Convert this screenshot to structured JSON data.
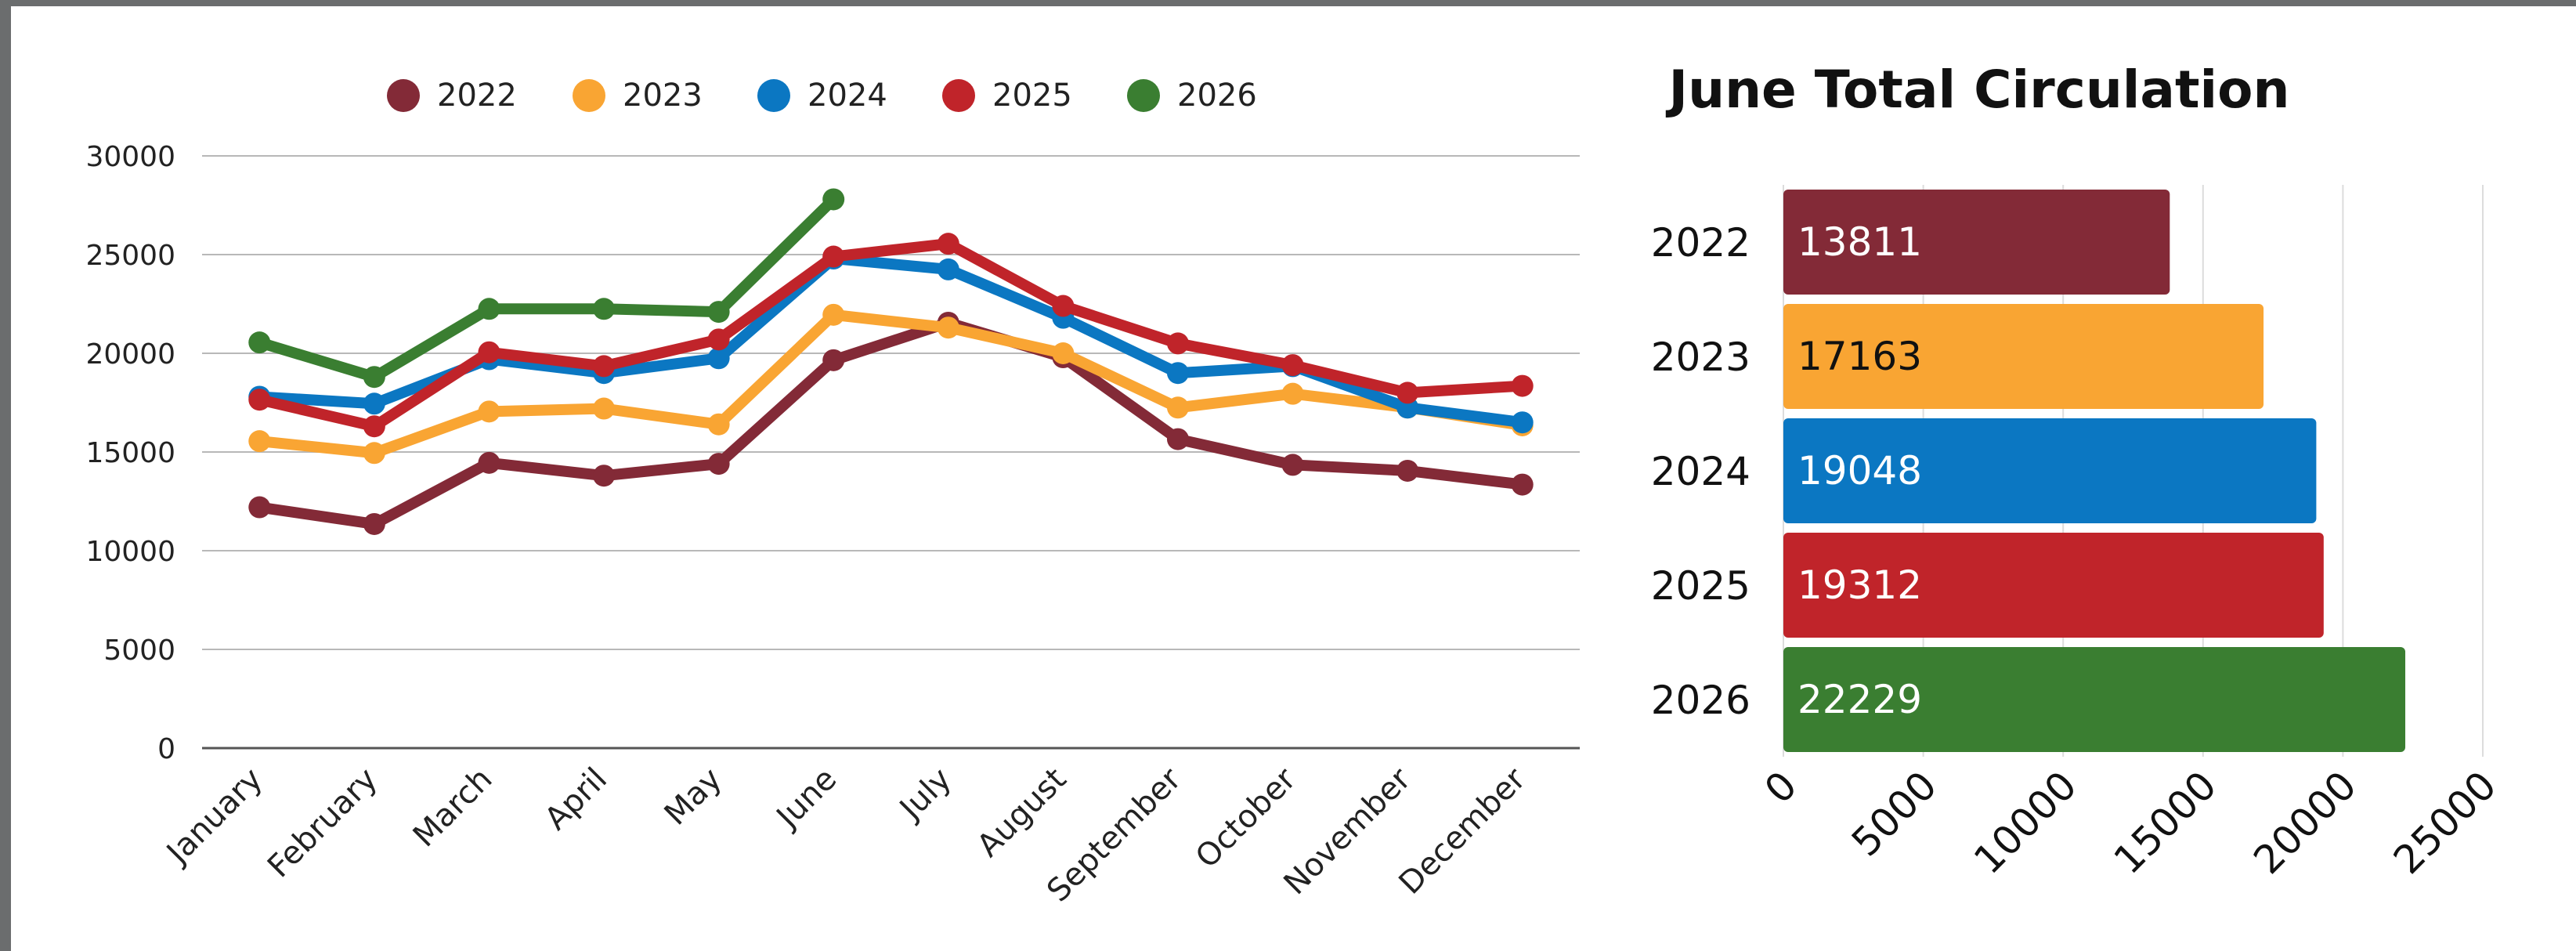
{
  "chart_data": [
    {
      "type": "line",
      "title": "",
      "xlabel": "",
      "ylabel": "",
      "ylim": [
        0,
        30000
      ],
      "yticks": [
        0,
        5000,
        10000,
        15000,
        20000,
        25000,
        30000
      ],
      "grid": true,
      "legend_position": "top",
      "categories": [
        "January",
        "February",
        "March",
        "April",
        "May",
        "June",
        "July",
        "August",
        "September",
        "October",
        "November",
        "December"
      ],
      "series": [
        {
          "name": "2022",
          "color": "#832a37",
          "values": [
            12200,
            11350,
            14450,
            13800,
            14400,
            19650,
            21550,
            19800,
            15650,
            14350,
            14050,
            13350
          ]
        },
        {
          "name": "2023",
          "color": "#f9a533",
          "values": [
            15550,
            14950,
            17050,
            17200,
            16400,
            21950,
            21300,
            20000,
            17250,
            17950,
            17250,
            16350
          ]
        },
        {
          "name": "2024",
          "color": "#0b77c2",
          "values": [
            17800,
            17450,
            19700,
            19000,
            19750,
            24800,
            24250,
            21800,
            19000,
            19350,
            17250,
            16500
          ]
        },
        {
          "name": "2025",
          "color": "#c0242a",
          "values": [
            17650,
            16300,
            20050,
            19350,
            20700,
            24900,
            25550,
            22400,
            20500,
            19400,
            18000,
            18350
          ]
        },
        {
          "name": "2026",
          "color": "#3a7e31",
          "values": [
            20550,
            18800,
            22250,
            22250,
            22100,
            27800,
            null,
            null,
            null,
            null,
            null,
            null
          ]
        }
      ]
    },
    {
      "type": "bar",
      "orientation": "horizontal",
      "title": "June Total Circulation",
      "xlabel": "",
      "ylabel": "",
      "xlim": [
        0,
        25000
      ],
      "xticks": [
        0,
        5000,
        10000,
        15000,
        20000,
        25000
      ],
      "grid": true,
      "categories": [
        "2022",
        "2023",
        "2024",
        "2025",
        "2026"
      ],
      "values": [
        13811,
        17163,
        19048,
        19312,
        22229
      ],
      "colors": [
        "#832a37",
        "#f9a533",
        "#0b77c2",
        "#c0242a",
        "#3a7e31"
      ],
      "label_colors": [
        "#ffffff",
        "#111111",
        "#ffffff",
        "#ffffff",
        "#ffffff"
      ]
    }
  ]
}
